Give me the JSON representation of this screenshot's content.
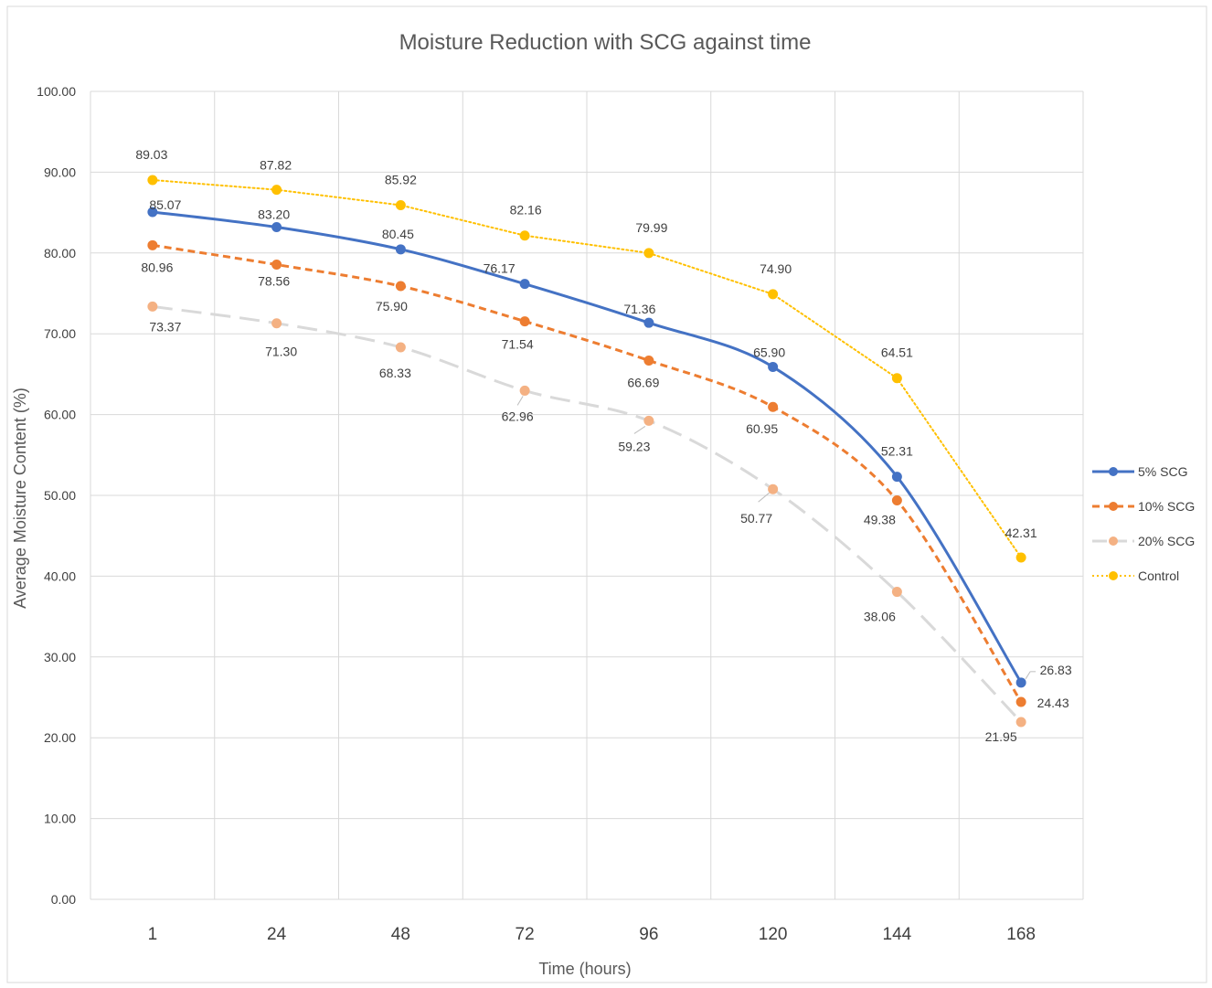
{
  "chart_data": {
    "type": "line",
    "title": "Moisture Reduction with SCG against time",
    "xlabel": "Time (hours)",
    "ylabel": "Average Moisture Content (%)",
    "categories": [
      "1",
      "24",
      "48",
      "72",
      "96",
      "120",
      "144",
      "168"
    ],
    "ylim": [
      0,
      100
    ],
    "yticks": [
      "0.00",
      "10.00",
      "20.00",
      "30.00",
      "40.00",
      "50.00",
      "60.00",
      "70.00",
      "80.00",
      "90.00",
      "100.00"
    ],
    "grid": true,
    "legend_position": "right",
    "series": [
      {
        "name": "5% SCG",
        "values": [
          85.07,
          83.2,
          80.45,
          76.17,
          71.36,
          65.9,
          52.31,
          26.83
        ],
        "labels": [
          "85.07",
          "83.20",
          "80.45",
          "76.17",
          "71.36",
          "65.90",
          "52.31",
          "26.83"
        ],
        "color": "#4472C4",
        "line_style": "solid",
        "smooth": true
      },
      {
        "name": "10% SCG",
        "values": [
          80.96,
          78.56,
          75.9,
          71.54,
          66.69,
          60.95,
          49.38,
          24.43
        ],
        "labels": [
          "80.96",
          "78.56",
          "75.90",
          "71.54",
          "66.69",
          "60.95",
          "49.38",
          "24.43"
        ],
        "color": "#ED7D31",
        "line_style": "dashed",
        "smooth": true
      },
      {
        "name": "20% SCG",
        "values": [
          73.37,
          71.3,
          68.33,
          62.96,
          59.23,
          50.77,
          38.06,
          21.95
        ],
        "labels": [
          "73.37",
          "71.30",
          "68.33",
          "62.96",
          "59.23",
          "50.77",
          "38.06",
          "21.95"
        ],
        "color": "#D9D9D9",
        "marker_color": "#F4B183",
        "line_style": "longdash",
        "smooth": true
      },
      {
        "name": "Control",
        "values": [
          89.03,
          87.82,
          85.92,
          82.16,
          79.99,
          74.9,
          64.51,
          42.31
        ],
        "labels": [
          "89.03",
          "87.82",
          "85.92",
          "82.16",
          "79.99",
          "74.90",
          "64.51",
          "42.31"
        ],
        "color": "#FFC000",
        "line_style": "dotted",
        "smooth": false
      }
    ]
  }
}
